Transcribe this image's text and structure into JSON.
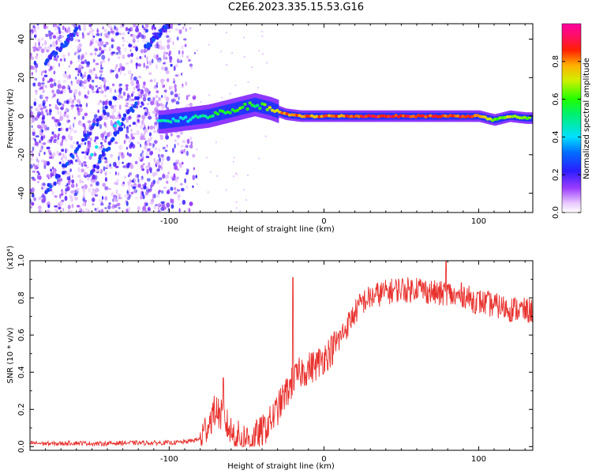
{
  "title": "C2E6.2023.335.15.53.G16",
  "colors": {
    "snr_line": "#e8312d",
    "axes": "#000000"
  },
  "chart_data": [
    {
      "type": "heatmap",
      "title": "",
      "xlabel": "Height of straight line (km)",
      "ylabel": "Frequency (Hz)",
      "xlim": [
        -190,
        135
      ],
      "ylim": [
        -50,
        48
      ],
      "xticks": [
        -100,
        0,
        100
      ],
      "xtick_labels": [
        "-100",
        "0",
        "100"
      ],
      "yticks": [
        -40,
        -20,
        0,
        20,
        40
      ],
      "ytick_labels": [
        "-40",
        "-20",
        "0",
        "20",
        "40"
      ],
      "colorbar": {
        "label": "Normalized spectral amplitude",
        "ticks": [
          0.0,
          0.2,
          0.4,
          0.6,
          0.8
        ],
        "tick_labels": [
          "0.0",
          "0.2",
          "0.4",
          "0.6",
          "0.8"
        ],
        "range": [
          0,
          1
        ],
        "colormap": "rainbow (white-violet-blue-cyan-green-yellow-red-magenta)"
      },
      "features": {
        "main_trace": {
          "x": [
            -105,
            -95,
            -85,
            -75,
            -65,
            -55,
            -45,
            -35,
            -25,
            -15,
            0,
            20,
            40,
            60,
            80,
            100,
            110,
            120,
            130
          ],
          "freq": [
            -3,
            -2,
            -1,
            0,
            2,
            4,
            6,
            4,
            1,
            0,
            0,
            0,
            0,
            0,
            0,
            0,
            -2,
            0,
            -1
          ],
          "amplitude": [
            0.45,
            0.45,
            0.45,
            0.5,
            0.55,
            0.6,
            0.55,
            0.7,
            0.8,
            0.8,
            0.8,
            0.85,
            0.9,
            0.85,
            0.85,
            0.85,
            0.6,
            0.7,
            0.6
          ]
        },
        "noise_region_x": [
          -190,
          -95
        ],
        "diagonal_streaks": [
          {
            "x_start": -180,
            "freq_start": -40,
            "x_end": -135,
            "freq_end": 10
          },
          {
            "x_start": -150,
            "freq_start": -30,
            "x_end": -120,
            "freq_end": 10
          },
          {
            "x_start": -180,
            "freq_start": 28,
            "x_end": -160,
            "freq_end": 44
          },
          {
            "x_start": -115,
            "freq_start": 36,
            "x_end": -100,
            "freq_end": 48
          }
        ]
      }
    },
    {
      "type": "line",
      "title": "",
      "xlabel": "Height of straight line (km)",
      "ylabel": "SNR (10 * v/v)",
      "yscale_label": "(x10⁴)",
      "xlim": [
        -190,
        135
      ],
      "ylim": [
        -0.02,
        1.0
      ],
      "xticks": [
        -100,
        0,
        100
      ],
      "xtick_labels": [
        "-100",
        "0",
        "100"
      ],
      "yticks": [
        0.0,
        0.2,
        0.4,
        0.6,
        0.8,
        1.0
      ],
      "ytick_labels": [
        "0.0",
        "0.2",
        "0.4",
        "0.6",
        "0.8",
        "1.0"
      ],
      "series": [
        {
          "x": [
            -190,
            -175,
            -160,
            -145,
            -130,
            -115,
            -100,
            -90,
            -80,
            -75,
            -70,
            -65,
            -60,
            -55,
            -50,
            -45,
            -40,
            -35,
            -30,
            -25,
            -20,
            -15,
            -10,
            -5,
            0,
            5,
            10,
            15,
            20,
            25,
            30,
            35,
            40,
            45,
            50,
            55,
            60,
            65,
            70,
            75,
            80,
            85,
            90,
            95,
            100,
            105,
            110,
            115,
            120,
            125,
            130,
            135
          ],
          "y": [
            0.02,
            0.015,
            0.02,
            0.015,
            0.02,
            0.02,
            0.02,
            0.025,
            0.04,
            0.12,
            0.2,
            0.15,
            0.08,
            0.05,
            0.04,
            0.05,
            0.08,
            0.13,
            0.2,
            0.28,
            0.35,
            0.4,
            0.42,
            0.44,
            0.48,
            0.52,
            0.58,
            0.65,
            0.72,
            0.78,
            0.8,
            0.82,
            0.83,
            0.84,
            0.85,
            0.84,
            0.86,
            0.84,
            0.83,
            0.82,
            0.83,
            0.8,
            0.82,
            0.79,
            0.78,
            0.77,
            0.76,
            0.75,
            0.74,
            0.74,
            0.73,
            0.73
          ],
          "peaks": [
            {
              "x": -65,
              "y": 0.37
            },
            {
              "x": -20,
              "y": 0.91
            },
            {
              "x": 79,
              "y": 1.0
            }
          ]
        }
      ]
    }
  ]
}
